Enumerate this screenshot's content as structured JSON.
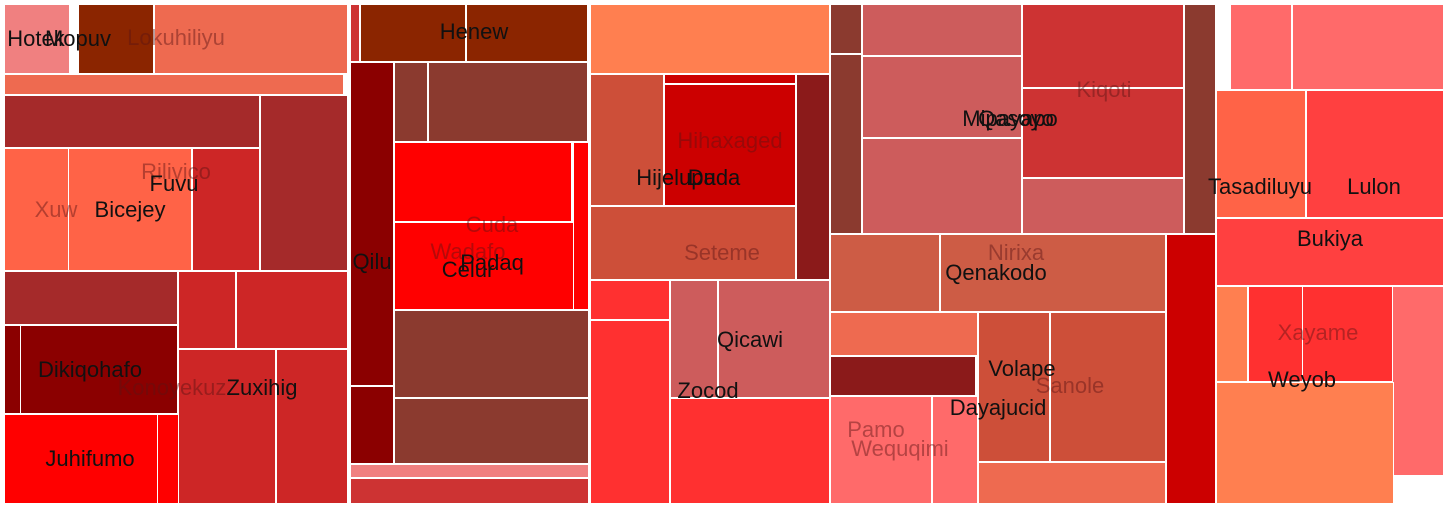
{
  "chart_data": {
    "type": "treemap",
    "title": "",
    "groups": [
      {
        "cells": [
          {
            "color": "#F08080"
          },
          {
            "color": "#8B2500"
          },
          {
            "color": "#EE6A50"
          },
          {
            "color": "#EE6A50"
          },
          {
            "color": "#A52A2A"
          },
          {
            "color": "#A52A2A"
          },
          {
            "color": "#FF6347"
          },
          {
            "color": "#FF6347"
          },
          {
            "color": "#CD2626"
          },
          {
            "color": "#A52A2A"
          },
          {
            "color": "#CD2626"
          },
          {
            "color": "#CD2626"
          },
          {
            "color": "#8B0000"
          },
          {
            "color": "#8B0000"
          },
          {
            "color": "#FF0000"
          },
          {
            "color": "#FF0000"
          },
          {
            "color": "#CD2626"
          },
          {
            "color": "#CD2626"
          }
        ]
      },
      {
        "cells": [
          {
            "color": "#CD3333"
          },
          {
            "color": "#8B2500"
          },
          {
            "color": "#8B2500"
          },
          {
            "color": "#8B0000"
          },
          {
            "color": "#8B3A2F"
          },
          {
            "color": "#8B3A2F"
          },
          {
            "color": "#FF0000"
          },
          {
            "color": "#FF0000"
          },
          {
            "color": "#FF0000"
          },
          {
            "color": "#8B3A2F"
          },
          {
            "color": "#8B3A2F"
          },
          {
            "color": "#8B0000"
          },
          {
            "color": "#F08080"
          },
          {
            "color": "#CD3333"
          }
        ]
      },
      {
        "cells": [
          {
            "color": "#FF7F50"
          },
          {
            "color": "#CD4F39"
          },
          {
            "color": "#CC0000"
          },
          {
            "color": "#CC0000"
          },
          {
            "color": "#8B1A1A"
          },
          {
            "color": "#CD4F39"
          },
          {
            "color": "#FF3030"
          },
          {
            "color": "#FF3030"
          },
          {
            "color": "#CD5C5C"
          },
          {
            "color": "#CD5C5C"
          },
          {
            "color": "#FF3030"
          }
        ]
      },
      {
        "cells": [
          {
            "color": "#8B3A2F"
          },
          {
            "color": "#8B3A2F"
          },
          {
            "color": "#CD5C5C"
          },
          {
            "color": "#CD5C5C"
          },
          {
            "color": "#CD5C5C"
          },
          {
            "color": "#CD3333"
          },
          {
            "color": "#CD3333"
          },
          {
            "color": "#CD5C5C"
          },
          {
            "color": "#CD5C45"
          },
          {
            "color": "#CD5C45"
          },
          {
            "color": "#EE6A50"
          },
          {
            "color": "#8B1A1A"
          },
          {
            "color": "#FF6A6A"
          },
          {
            "color": "#FF6A6A"
          },
          {
            "color": "#CD4F39"
          },
          {
            "color": "#CD4F39"
          },
          {
            "color": "#EE6A50"
          },
          {
            "color": "#CC0000"
          }
        ]
      },
      {
        "cells": [
          {
            "color": "#8B3A2F"
          },
          {
            "color": "#FF6A6A"
          },
          {
            "color": "#FF6A6A"
          },
          {
            "color": "#FF6347"
          },
          {
            "color": "#FF4040"
          },
          {
            "color": "#FF4040"
          },
          {
            "color": "#FF7F50"
          },
          {
            "color": "#FF3030"
          },
          {
            "color": "#FF3030"
          },
          {
            "color": "#FF6A6A"
          },
          {
            "color": "#FF7F50"
          }
        ]
      }
    ],
    "labels": [
      {
        "text": "Hotek",
        "style": "dark"
      },
      {
        "text": "Mopuv",
        "style": "dark"
      },
      {
        "text": "Lokuhiliyu",
        "style": "faint"
      },
      {
        "text": "Rilivico",
        "style": "faint"
      },
      {
        "text": "Fuvu",
        "style": "dark"
      },
      {
        "text": "Xuw",
        "style": "faint"
      },
      {
        "text": "Bicejey",
        "style": "dark"
      },
      {
        "text": "Dikiqohafo",
        "style": "dark"
      },
      {
        "text": "Konoyekuz",
        "style": "faint"
      },
      {
        "text": "Zuxihig",
        "style": "dark"
      },
      {
        "text": "Juhifumo",
        "style": "dark"
      },
      {
        "text": "Henew",
        "style": "dark"
      },
      {
        "text": "Qilu",
        "style": "dark"
      },
      {
        "text": "Cuda",
        "style": "faint"
      },
      {
        "text": "Wadafo",
        "style": "faint"
      },
      {
        "text": "Celur",
        "style": "dark"
      },
      {
        "text": "Padaq",
        "style": "dark"
      },
      {
        "text": "Hihaxaged",
        "style": "faint"
      },
      {
        "text": "Hijelupa",
        "style": "dark"
      },
      {
        "text": "Duda",
        "style": "dark"
      },
      {
        "text": "Seteme",
        "style": "faint"
      },
      {
        "text": "Qicawi",
        "style": "dark"
      },
      {
        "text": "Zocod",
        "style": "dark"
      },
      {
        "text": "Kiqoti",
        "style": "faint"
      },
      {
        "text": "Mipayapo",
        "style": "dark"
      },
      {
        "text": "Qasoyo",
        "style": "dark"
      },
      {
        "text": "Nirixa",
        "style": "faint"
      },
      {
        "text": "Qenakodo",
        "style": "dark"
      },
      {
        "text": "Volape",
        "style": "dark"
      },
      {
        "text": "Sanole",
        "style": "faint"
      },
      {
        "text": "Dayajucid",
        "style": "dark"
      },
      {
        "text": "Pamo",
        "style": "faint"
      },
      {
        "text": "Wequqimi",
        "style": "faint"
      },
      {
        "text": "Tasadiluyu",
        "style": "dark"
      },
      {
        "text": "Lulon",
        "style": "dark"
      },
      {
        "text": "Bukiya",
        "style": "dark"
      },
      {
        "text": "Xayame",
        "style": "faint"
      },
      {
        "text": "Weyob",
        "style": "dark"
      }
    ]
  }
}
